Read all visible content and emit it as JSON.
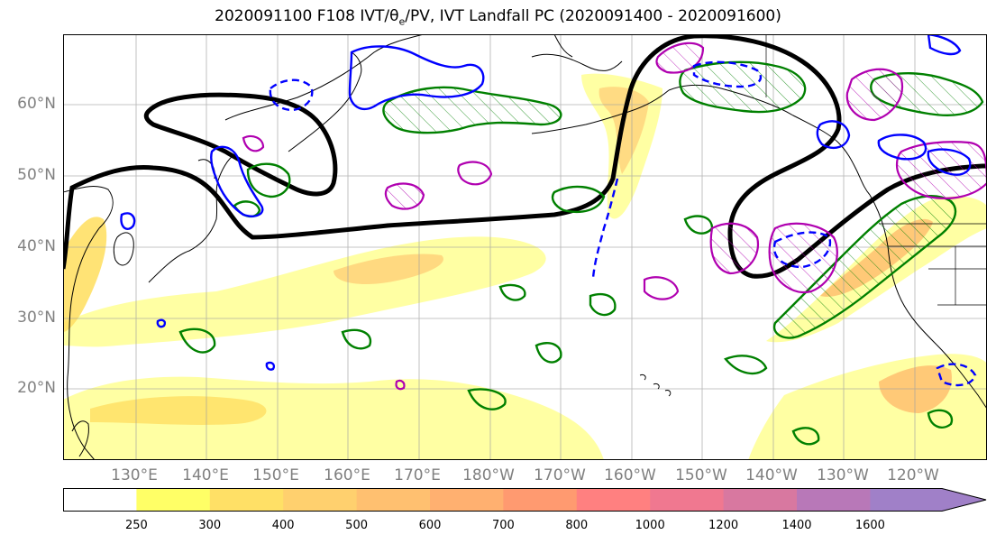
{
  "title": "2020091100 F108 IVT/",
  "title_theta": "θ",
  "title_theta_sub": "e",
  "title_rest": "/PV, IVT Landfall PC (2020091400 - 2020091600)",
  "lat_labels": [
    "60°N",
    "50°N",
    "40°N",
    "30°N",
    "20°N"
  ],
  "lon_labels": [
    "130°E",
    "140°E",
    "150°E",
    "160°E",
    "170°E",
    "180°W",
    "170°W",
    "160°W",
    "150°W",
    "140°W",
    "130°W",
    "120°W"
  ],
  "colorbar": {
    "levels": [
      250,
      300,
      400,
      500,
      600,
      700,
      800,
      1000,
      1200,
      1400,
      1600
    ],
    "tick_labels": [
      "250",
      "300",
      "400",
      "500",
      "600",
      "700",
      "800",
      "1000",
      "1200",
      "1400",
      "1600"
    ],
    "colors": [
      "#ffff66",
      "#ffe066",
      "#ffd06e",
      "#ffc070",
      "#ffb070",
      "#ff9a70",
      "#ff8080",
      "#f07890",
      "#d878a0",
      "#b878b8",
      "#a080c8"
    ],
    "extend": "max"
  },
  "legend_colors": {
    "pc_contour": "#000000",
    "pv_contour": "#0000ff",
    "theta_e_contour": "#008000",
    "ivt_secondary": "#b000b0"
  }
}
